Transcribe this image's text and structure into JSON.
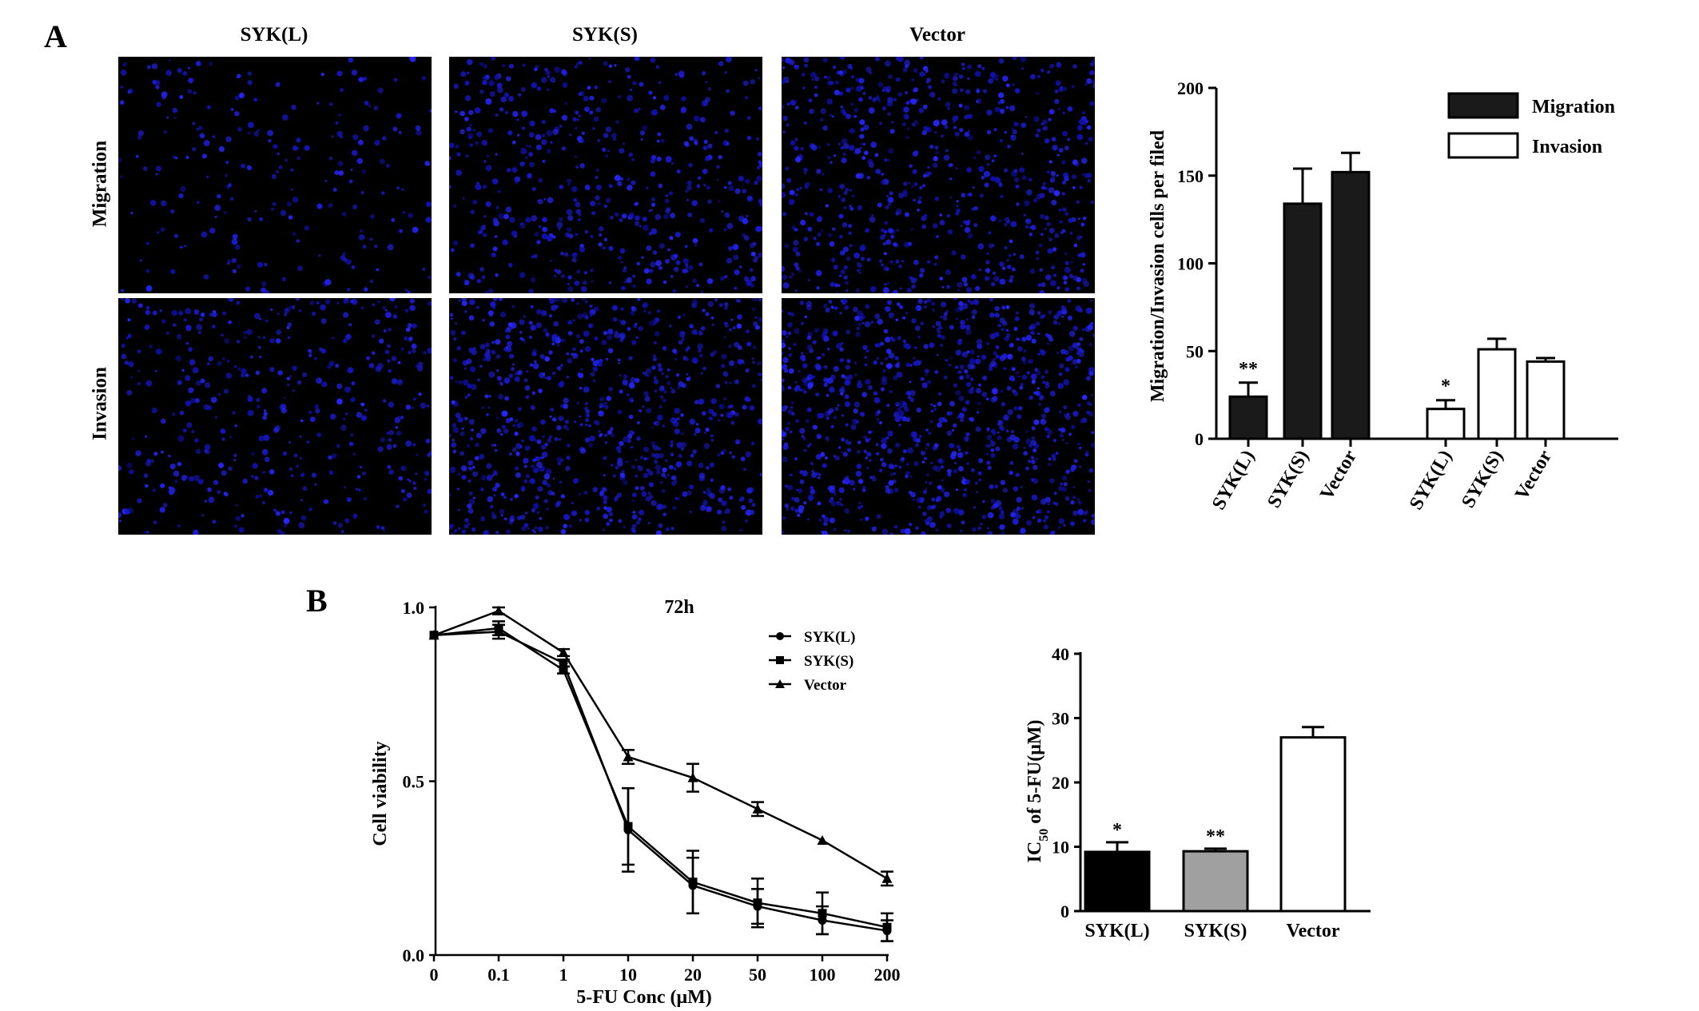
{
  "panels": {
    "a_label": "A",
    "b_label": "B"
  },
  "micrographs": {
    "columns": [
      "SYK(L)",
      "SYK(S)",
      "Vector"
    ],
    "rows": [
      "Migration",
      "Invasion"
    ]
  },
  "chart_data": [
    {
      "id": "migration-invasion",
      "type": "bar",
      "title": "",
      "xlabel": "",
      "ylabel": "Migration/Invasion cells per filed",
      "ylim": [
        0,
        200
      ],
      "yticks": [
        0,
        50,
        100,
        150,
        200
      ],
      "legend_position": "top-right",
      "groups": [
        {
          "name": "Migration",
          "color": "#1a1a1a",
          "categories": [
            "SYK(L)",
            "SYK(S)",
            "Vector"
          ],
          "values": [
            24,
            134,
            152
          ],
          "errors": [
            8,
            20,
            11
          ],
          "annotations": [
            "**",
            "",
            ""
          ]
        },
        {
          "name": "Invasion",
          "color": "#ffffff",
          "categories": [
            "SYK(L)",
            "SYK(S)",
            "Vector"
          ],
          "values": [
            17,
            51,
            44
          ],
          "errors": [
            5,
            6,
            2
          ],
          "annotations": [
            "*",
            "",
            ""
          ]
        }
      ]
    },
    {
      "id": "cell-viability",
      "type": "line",
      "title": "72h",
      "xlabel": "5-FU Conc (μM)",
      "ylabel": "Cell viability",
      "ylim": [
        0,
        1.0
      ],
      "yticks": [
        "0.0",
        "0.5",
        "1.0"
      ],
      "x": [
        "0",
        "0.1",
        "1",
        "10",
        "20",
        "50",
        "100",
        "200"
      ],
      "legend_position": "top-right",
      "series": [
        {
          "name": "SYK(L)",
          "marker": "circle",
          "values": [
            0.92,
            0.93,
            0.84,
            0.36,
            0.2,
            0.14,
            0.1,
            0.07
          ],
          "errors": [
            0,
            0.02,
            0.01,
            0.12,
            0.08,
            0.05,
            0.04,
            0.03
          ]
        },
        {
          "name": "SYK(S)",
          "marker": "square",
          "values": [
            0.92,
            0.94,
            0.82,
            0.37,
            0.21,
            0.15,
            0.12,
            0.08
          ],
          "errors": [
            0,
            0.02,
            0.01,
            0.11,
            0.09,
            0.07,
            0.06,
            0.04
          ]
        },
        {
          "name": "Vector",
          "marker": "triangle",
          "values": [
            0.92,
            0.99,
            0.87,
            0.57,
            0.51,
            0.42,
            0.33,
            0.22
          ],
          "errors": [
            0,
            0.01,
            0.01,
            0.02,
            0.04,
            0.02,
            0.0,
            0.02
          ]
        }
      ]
    },
    {
      "id": "ic50",
      "type": "bar",
      "title": "",
      "xlabel": "",
      "ylabel": "IC50 of 5-FU(μM)",
      "ylim": [
        0,
        40
      ],
      "yticks": [
        0,
        10,
        20,
        30,
        40
      ],
      "categories": [
        "SYK(L)",
        "SYK(S)",
        "Vector"
      ],
      "values": [
        9.2,
        9.3,
        27
      ],
      "errors": [
        1.5,
        0.4,
        1.6
      ],
      "colors": [
        "#000000",
        "#a0a0a0",
        "#ffffff"
      ],
      "annotations": [
        "*",
        "**",
        ""
      ]
    }
  ]
}
